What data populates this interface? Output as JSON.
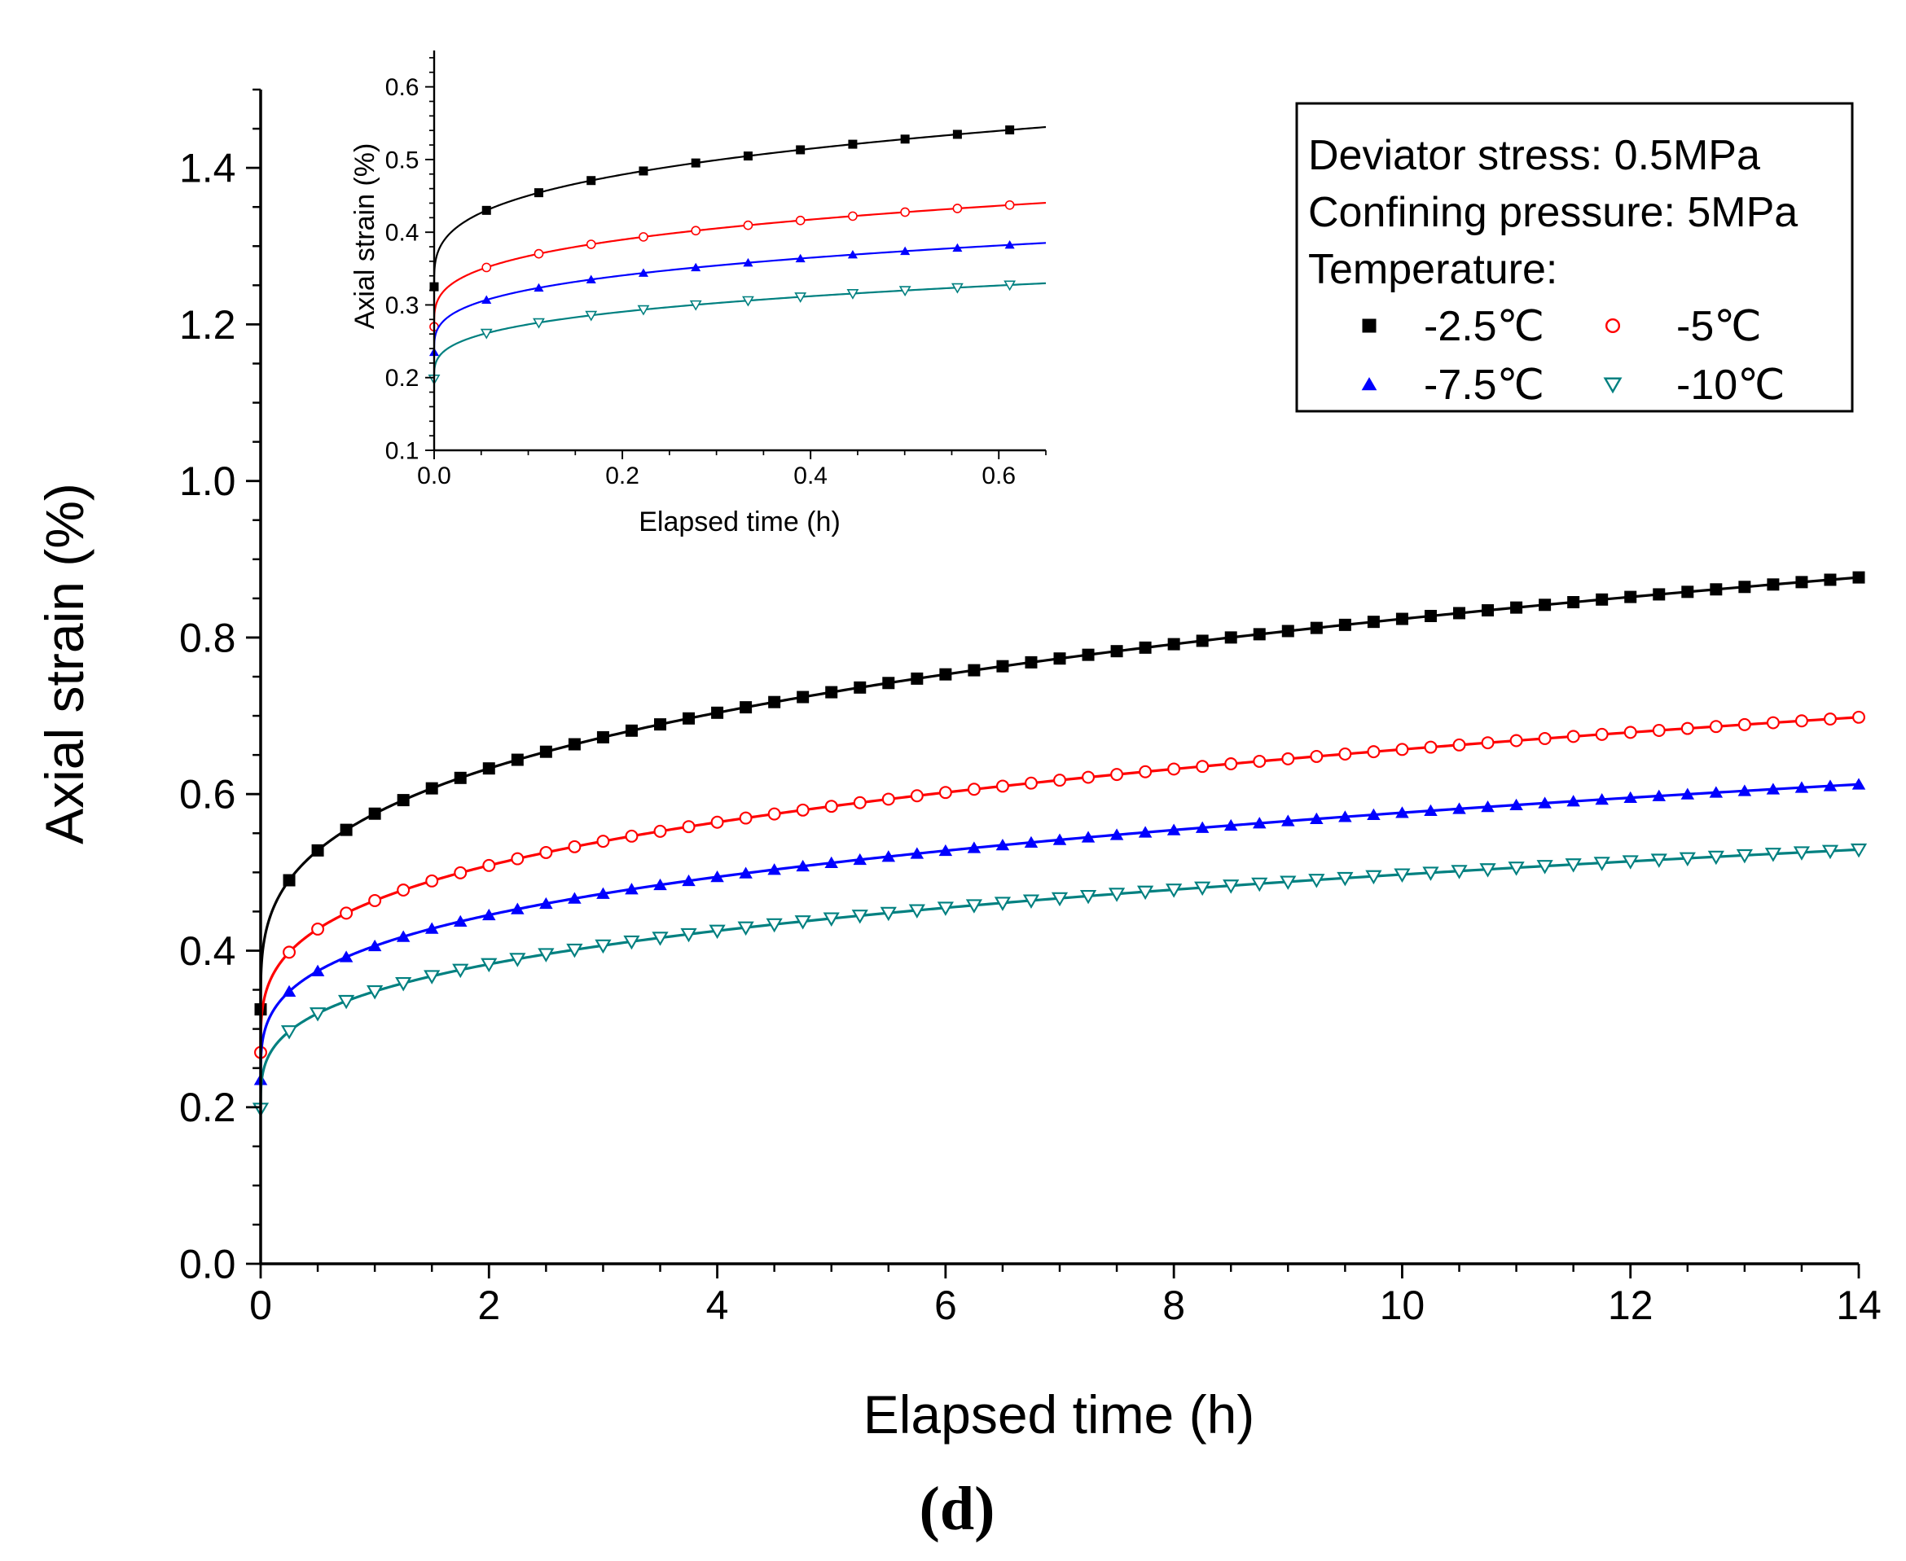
{
  "caption": "(d)",
  "chart_data": [
    {
      "id": "main",
      "type": "line",
      "xlabel": "Elapsed time (h)",
      "ylabel": "Axial strain (%)",
      "xlim": [
        0,
        14
      ],
      "ylim": [
        0,
        1.5
      ],
      "x_ticks": [
        0,
        2,
        4,
        6,
        8,
        10,
        12,
        14
      ],
      "y_ticks": [
        0.0,
        0.2,
        0.4,
        0.6,
        0.8,
        1.0,
        1.2,
        1.4
      ],
      "x_tick_labels": [
        "0",
        "2",
        "4",
        "6",
        "8",
        "10",
        "12",
        "14"
      ],
      "y_tick_labels": [
        "0.0",
        "0.2",
        "0.4",
        "0.6",
        "0.8",
        "1.0",
        "1.2",
        "1.4"
      ],
      "grid": false,
      "marker_dt": 0.25,
      "series": [
        {
          "name": "-2.5℃",
          "marker": "square",
          "color": "#000000",
          "model": {
            "a": 0.325,
            "b": 0.25,
            "n": 0.3
          }
        },
        {
          "name": "-5℃",
          "marker": "circle-open",
          "color": "#ff0000",
          "model": {
            "a": 0.27,
            "b": 0.194,
            "n": 0.3
          }
        },
        {
          "name": "-7.5℃",
          "marker": "triangle-up",
          "color": "#0000ff",
          "model": {
            "a": 0.235,
            "b": 0.171,
            "n": 0.3
          }
        },
        {
          "name": "-10℃",
          "marker": "triangle-down-open",
          "color": "#008080",
          "model": {
            "a": 0.198,
            "b": 0.15,
            "n": 0.3
          }
        }
      ]
    },
    {
      "id": "inset",
      "type": "line",
      "xlabel": "Elapsed time (h)",
      "ylabel": "Axial strain (%)",
      "xlim": [
        0,
        0.65
      ],
      "ylim": [
        0.1,
        0.65
      ],
      "x_ticks": [
        0.0,
        0.2,
        0.4,
        0.6
      ],
      "y_ticks": [
        0.1,
        0.2,
        0.3,
        0.4,
        0.5,
        0.6
      ],
      "x_tick_labels": [
        "0.0",
        "0.2",
        "0.4",
        "0.6"
      ],
      "y_tick_labels": [
        "0.1",
        "0.2",
        "0.3",
        "0.4",
        "0.5",
        "0.6"
      ],
      "grid": false,
      "marker_dt": 0.0556,
      "series": [
        {
          "name": "-2.5℃",
          "marker": "square",
          "color": "#000000",
          "model": {
            "a": 0.325,
            "b": 0.25,
            "n": 0.3
          }
        },
        {
          "name": "-5℃",
          "marker": "circle-open",
          "color": "#ff0000",
          "model": {
            "a": 0.27,
            "b": 0.194,
            "n": 0.3
          }
        },
        {
          "name": "-7.5℃",
          "marker": "triangle-up",
          "color": "#0000ff",
          "model": {
            "a": 0.235,
            "b": 0.171,
            "n": 0.3
          }
        },
        {
          "name": "-10℃",
          "marker": "triangle-down-open",
          "color": "#008080",
          "model": {
            "a": 0.198,
            "b": 0.15,
            "n": 0.3
          }
        }
      ]
    }
  ],
  "legend": {
    "placement": "top-right",
    "lines": [
      "Deviator stress: 0.5MPa",
      "Confining pressure: 5MPa",
      "Temperature:"
    ],
    "entries": [
      {
        "label": "-2.5℃",
        "marker": "square",
        "color": "#000000"
      },
      {
        "label": "-5℃",
        "marker": "circle-open",
        "color": "#ff0000"
      },
      {
        "label": "-7.5℃",
        "marker": "triangle-up",
        "color": "#0000ff"
      },
      {
        "label": "-10℃",
        "marker": "triangle-down-open",
        "color": "#008080"
      }
    ]
  }
}
